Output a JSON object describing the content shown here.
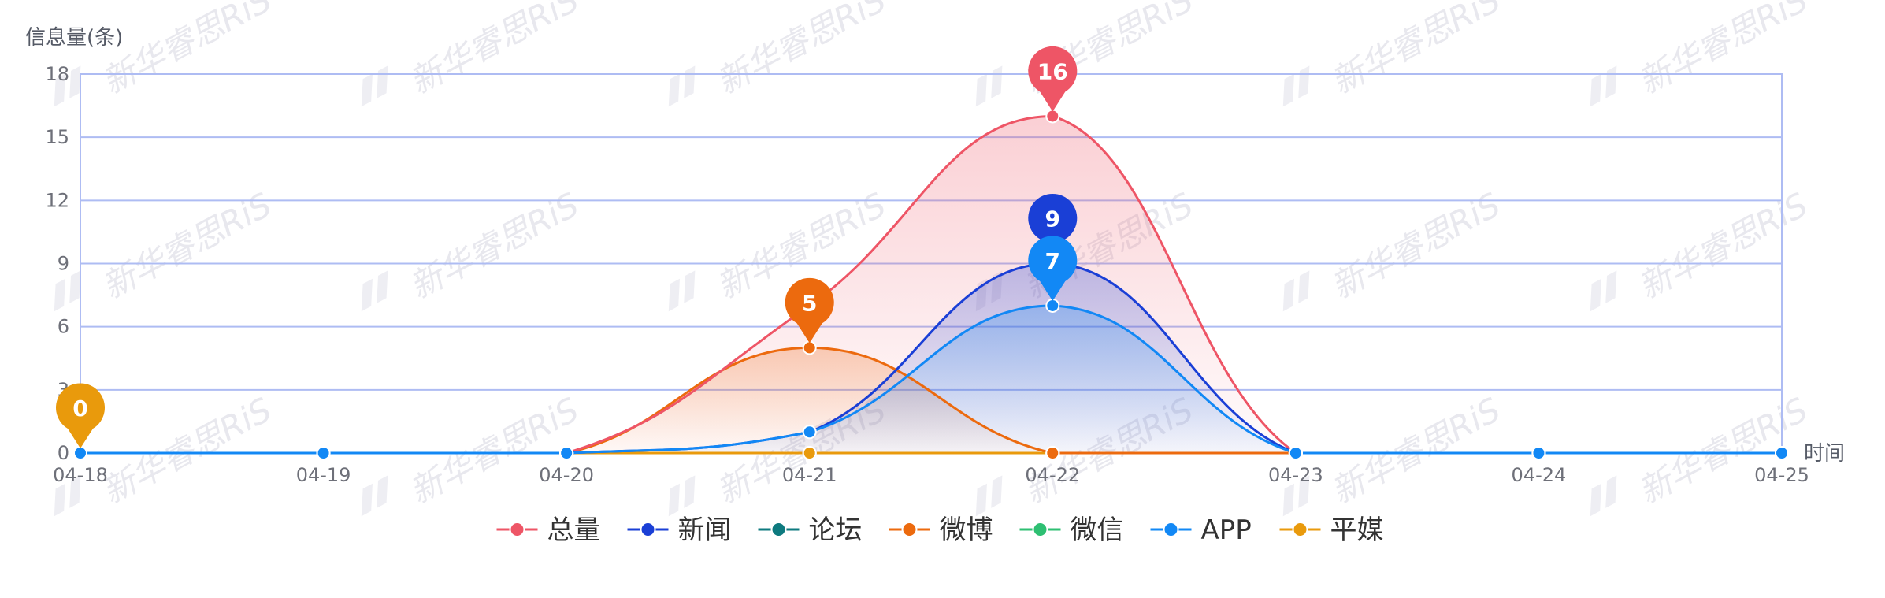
{
  "chart_data": {
    "type": "line",
    "smooth": true,
    "area_fill": true,
    "ylabel": "信息量(条)",
    "xlabel": "时间",
    "categories": [
      "04-18",
      "04-19",
      "04-20",
      "04-21",
      "04-22",
      "04-23",
      "04-24",
      "04-25"
    ],
    "ylim": [
      0,
      18
    ],
    "yticks": [
      0,
      3,
      6,
      9,
      12,
      15,
      18
    ],
    "grid": true,
    "legend_position": "bottom-center",
    "watermark": "新华睿思RiS",
    "series": [
      {
        "name": "总量",
        "color": "#ee5566",
        "values": [
          0,
          0,
          0,
          7,
          16,
          0,
          0,
          0
        ],
        "markPoint": {
          "index": 4,
          "value": 16
        }
      },
      {
        "name": "新闻",
        "color": "#1a3fd6",
        "values": [
          0,
          0,
          0,
          1,
          9,
          0,
          0,
          0
        ],
        "markPoint": {
          "index": 4,
          "value": 9
        }
      },
      {
        "name": "论坛",
        "color": "#0e7a7f",
        "values": [
          0,
          0,
          0,
          0,
          0,
          0,
          0,
          0
        ]
      },
      {
        "name": "微博",
        "color": "#ec6a0e",
        "values": [
          0,
          0,
          0,
          5,
          0,
          0,
          0,
          0
        ],
        "markPoint": {
          "index": 3,
          "value": 5
        }
      },
      {
        "name": "微信",
        "color": "#2ebf72",
        "values": [
          0,
          0,
          0,
          0,
          0,
          0,
          0,
          0
        ]
      },
      {
        "name": "APP",
        "color": "#1288f5",
        "values": [
          0,
          0,
          0,
          1,
          7,
          0,
          0,
          0
        ],
        "markPoint": {
          "index": 4,
          "value": 7
        }
      },
      {
        "name": "平媒",
        "color": "#e99a0c",
        "values": [
          0,
          0,
          0,
          0,
          0,
          0,
          0,
          0
        ],
        "markPoint": {
          "index": 0,
          "value": 0
        }
      }
    ]
  }
}
